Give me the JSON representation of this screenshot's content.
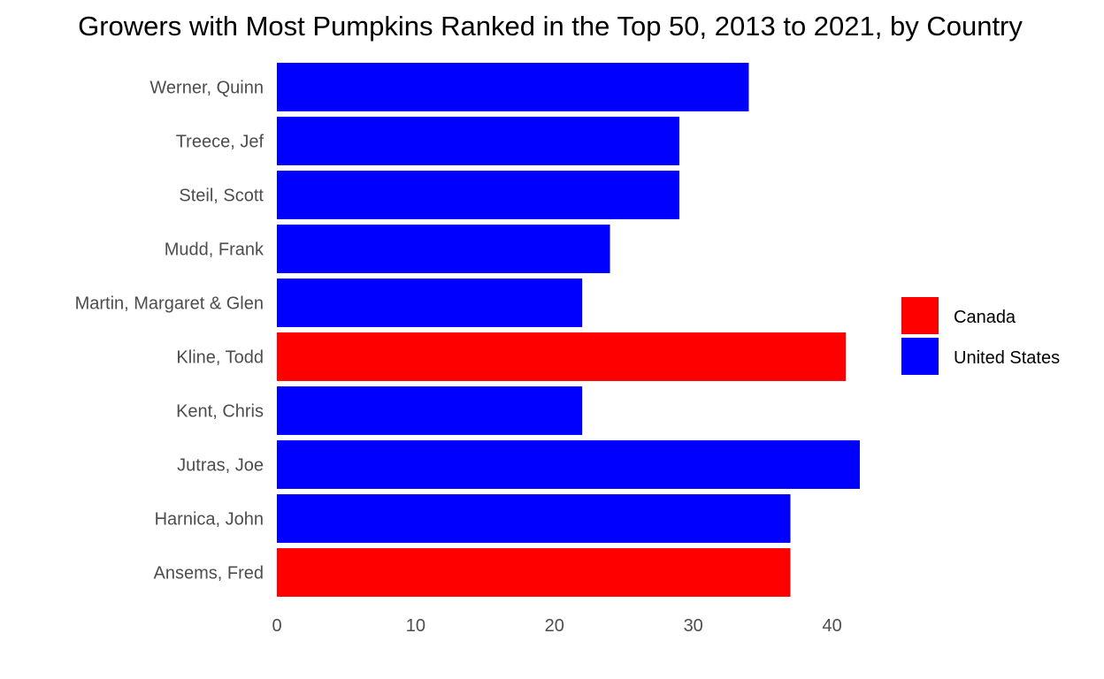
{
  "chart_data": {
    "type": "bar",
    "orientation": "horizontal",
    "title": "Growers with Most Pumpkins Ranked in the Top 50, 2013 to 2021, by Country",
    "xlabel": "",
    "ylabel": "",
    "categories": [
      "Werner, Quinn",
      "Treece, Jef",
      "Steil, Scott",
      "Mudd, Frank",
      "Martin, Margaret & Glen",
      "Kline, Todd",
      "Kent, Chris",
      "Jutras, Joe",
      "Harnica, John",
      "Ansems, Fred"
    ],
    "values": [
      34,
      29,
      29,
      24,
      22,
      41,
      22,
      42,
      37,
      37
    ],
    "groups": [
      "United States",
      "United States",
      "United States",
      "United States",
      "United States",
      "Canada",
      "United States",
      "United States",
      "United States",
      "Canada"
    ],
    "xlim": [
      0,
      44
    ],
    "xticks": [
      0,
      10,
      20,
      30,
      40
    ],
    "grid": false,
    "legend": {
      "placement": "right",
      "entries": [
        {
          "name": "Canada",
          "color": "#ff0000"
        },
        {
          "name": "United States",
          "color": "#0000ff"
        }
      ]
    }
  }
}
